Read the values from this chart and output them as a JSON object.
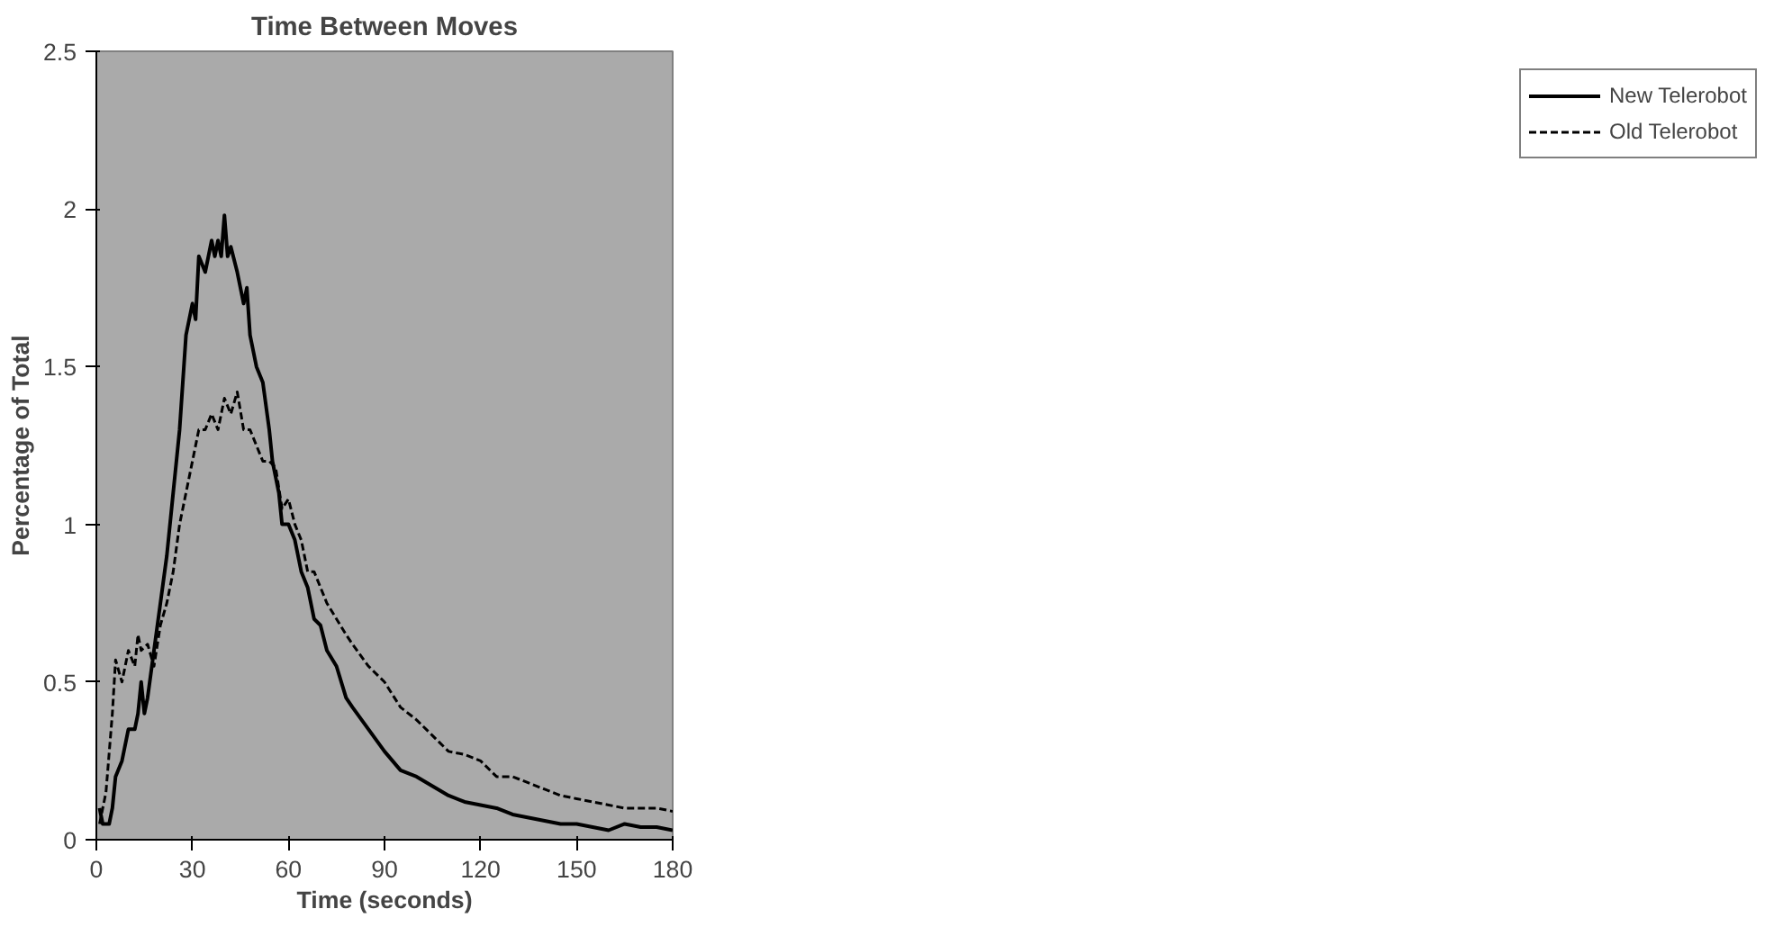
{
  "chart_data": {
    "type": "line",
    "title": "Time Between Moves",
    "xlabel": "Time (seconds)",
    "ylabel": "Percentage of Total",
    "xlim": [
      0,
      180
    ],
    "xticks": [
      0,
      30,
      60,
      90,
      120,
      150,
      180
    ],
    "ylim": [
      0,
      2.5
    ],
    "yticks": [
      0,
      0.5,
      1,
      1.5,
      2,
      2.5
    ],
    "grid": false,
    "legend": "right",
    "marker": "none",
    "series": [
      {
        "name": "New Telerobot",
        "color": "#000000",
        "line_style": "solid",
        "x": [
          1,
          2,
          4,
          5,
          6,
          8,
          10,
          12,
          13,
          14,
          15,
          16,
          18,
          20,
          22,
          24,
          26,
          28,
          30,
          31,
          32,
          34,
          36,
          37,
          38,
          39,
          40,
          41,
          42,
          44,
          46,
          47,
          48,
          50,
          52,
          54,
          55,
          56,
          57,
          58,
          60,
          62,
          64,
          66,
          68,
          70,
          72,
          75,
          78,
          80,
          85,
          90,
          95,
          100,
          105,
          110,
          115,
          120,
          125,
          130,
          135,
          140,
          145,
          150,
          155,
          160,
          165,
          170,
          175,
          180
        ],
        "values": [
          0.1,
          0.05,
          0.05,
          0.1,
          0.2,
          0.25,
          0.35,
          0.35,
          0.4,
          0.5,
          0.4,
          0.45,
          0.6,
          0.75,
          0.9,
          1.1,
          1.3,
          1.6,
          1.7,
          1.65,
          1.85,
          1.8,
          1.9,
          1.85,
          1.9,
          1.85,
          1.98,
          1.85,
          1.88,
          1.8,
          1.7,
          1.75,
          1.6,
          1.5,
          1.45,
          1.3,
          1.2,
          1.15,
          1.1,
          1.0,
          1.0,
          0.95,
          0.85,
          0.8,
          0.7,
          0.68,
          0.6,
          0.55,
          0.45,
          0.42,
          0.35,
          0.28,
          0.22,
          0.2,
          0.17,
          0.14,
          0.12,
          0.11,
          0.1,
          0.08,
          0.07,
          0.06,
          0.05,
          0.05,
          0.04,
          0.03,
          0.05,
          0.04,
          0.04,
          0.03
        ]
      },
      {
        "name": "Old Telerobot",
        "color": "#000000",
        "line_style": "dashed",
        "x": [
          1,
          3,
          5,
          6,
          8,
          10,
          12,
          13,
          14,
          16,
          18,
          20,
          22,
          24,
          26,
          28,
          30,
          32,
          34,
          36,
          38,
          40,
          42,
          44,
          46,
          48,
          50,
          52,
          54,
          56,
          58,
          60,
          62,
          64,
          66,
          68,
          70,
          72,
          75,
          78,
          80,
          85,
          90,
          95,
          100,
          105,
          110,
          115,
          120,
          125,
          130,
          135,
          140,
          145,
          150,
          155,
          160,
          165,
          170,
          175,
          180
        ],
        "values": [
          0.05,
          0.15,
          0.4,
          0.57,
          0.5,
          0.6,
          0.55,
          0.65,
          0.6,
          0.62,
          0.55,
          0.68,
          0.75,
          0.85,
          1.0,
          1.1,
          1.2,
          1.3,
          1.3,
          1.35,
          1.3,
          1.4,
          1.35,
          1.42,
          1.3,
          1.3,
          1.25,
          1.2,
          1.2,
          1.18,
          1.05,
          1.08,
          1.0,
          0.95,
          0.85,
          0.85,
          0.8,
          0.75,
          0.7,
          0.65,
          0.62,
          0.55,
          0.5,
          0.42,
          0.38,
          0.33,
          0.28,
          0.27,
          0.25,
          0.2,
          0.2,
          0.18,
          0.16,
          0.14,
          0.13,
          0.12,
          0.11,
          0.1,
          0.1,
          0.1,
          0.09
        ]
      }
    ]
  }
}
